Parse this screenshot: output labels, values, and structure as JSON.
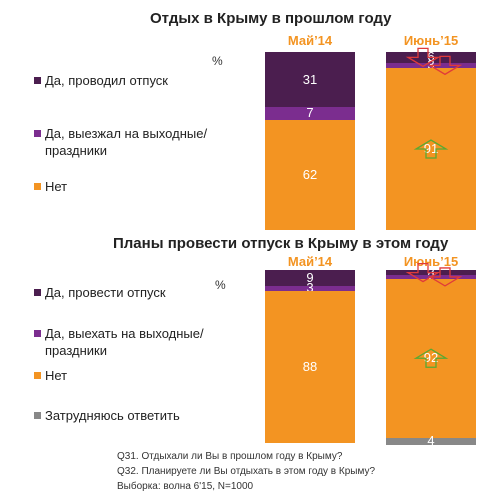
{
  "colors": {
    "yes": "#4b1e4f",
    "weekend": "#7b2d8f",
    "no": "#f39422",
    "unsure": "#888888",
    "arrow_up": "#5aa832",
    "arrow_down": "#e03a3a",
    "header": "#f39422"
  },
  "footnotes": {
    "q31": "Q31. Отдыхали ли Вы в прошлом году в Крыму?",
    "q32": "Q32. Планируете ли Вы отдыхать в этом году в Крыму?",
    "sample": "Выборка: волна 6'15, N=1000"
  },
  "chart_data": [
    {
      "type": "bar",
      "stacked": true,
      "title": "Отдых в Крыму в прошлом году",
      "unit_label": "%",
      "categories": [
        "Май’14",
        "Июнь’15"
      ],
      "series": [
        {
          "key": "yes",
          "name": "Да, проводил  отпуск",
          "values": [
            31,
            6
          ]
        },
        {
          "key": "weekend",
          "name": "Да, выезжал  на выходные/праздники",
          "values": [
            7,
            3
          ]
        },
        {
          "key": "no",
          "name": "Нет",
          "values": [
            62,
            91
          ]
        }
      ],
      "change_markers": [
        {
          "category": "Июнь’15",
          "series": "yes",
          "direction": "down"
        },
        {
          "category": "Июнь’15",
          "series": "weekend",
          "direction": "down"
        },
        {
          "category": "Июнь’15",
          "series": "no",
          "direction": "up"
        }
      ],
      "ylim": [
        0,
        100
      ]
    },
    {
      "type": "bar",
      "stacked": true,
      "title": "Планы провести отпуск в Крыму в этом году",
      "unit_label": "%",
      "categories": [
        "Май’14",
        "Июнь’15"
      ],
      "series": [
        {
          "key": "yes",
          "name": "Да, провести  отпуск",
          "values": [
            9,
            3
          ]
        },
        {
          "key": "weekend",
          "name": "Да, выехать  на выходные/праздники",
          "values": [
            3,
            2
          ]
        },
        {
          "key": "no",
          "name": "Нет",
          "values": [
            88,
            92
          ]
        },
        {
          "key": "unsure",
          "name": "Затрудняюсь  ответить",
          "values": [
            0,
            4
          ]
        }
      ],
      "change_markers": [
        {
          "category": "Июнь’15",
          "series": "yes",
          "direction": "down"
        },
        {
          "category": "Июнь’15",
          "series": "weekend",
          "direction": "down"
        },
        {
          "category": "Июнь’15",
          "series": "no",
          "direction": "up"
        }
      ],
      "ylim": [
        0,
        100
      ]
    }
  ]
}
